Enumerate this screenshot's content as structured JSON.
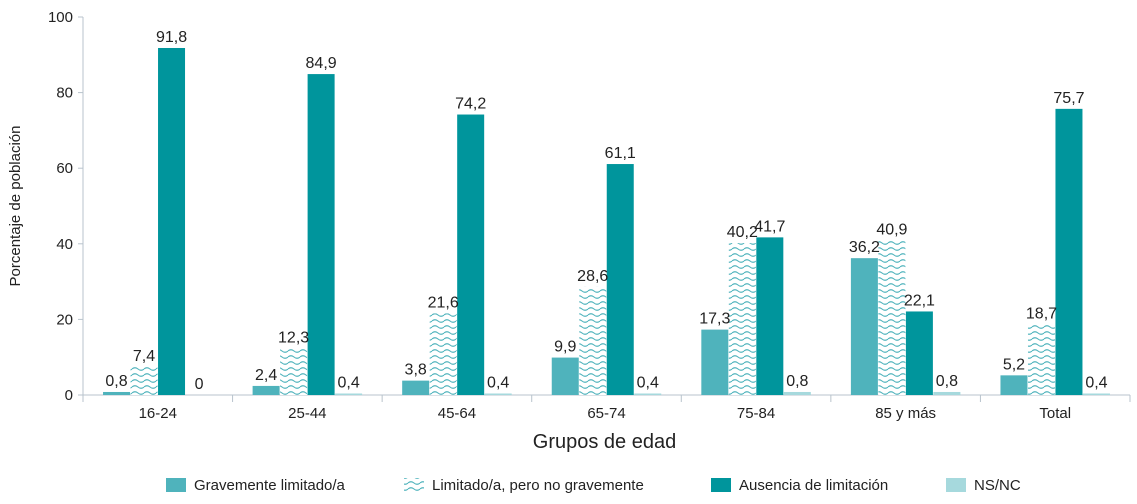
{
  "chart_data": {
    "type": "bar",
    "xlabel": "Grupos de edad",
    "ylabel": "Porcentaje de población",
    "ylim": [
      0,
      100
    ],
    "yticks": [
      "0",
      "20",
      "40",
      "60",
      "80",
      "100"
    ],
    "grid": false,
    "legend_position": "bottom",
    "categories": [
      "16-24",
      "25-44",
      "45-64",
      "65-74",
      "75-84",
      "85 y más",
      "Total"
    ],
    "series": [
      {
        "name": "Gravemente limitado/a",
        "color": "#4fb3bc",
        "pattern": "solid",
        "values": [
          0.8,
          2.4,
          3.8,
          9.9,
          17.3,
          36.2,
          5.2
        ],
        "labels": [
          "0,8",
          "2,4",
          "3,8",
          "9,9",
          "17,3",
          "36,2",
          "5,2"
        ]
      },
      {
        "name": "Limitado/a, pero no gravemente",
        "color": "#4fb3bc",
        "pattern": "waves",
        "values": [
          7.4,
          12.3,
          21.6,
          28.6,
          40.2,
          40.9,
          18.7
        ],
        "labels": [
          "7,4",
          "12,3",
          "21,6",
          "28,6",
          "40,2",
          "40,9",
          "18,7"
        ]
      },
      {
        "name": "Ausencia de limitación",
        "color": "#00959c",
        "pattern": "solid",
        "values": [
          91.8,
          84.9,
          74.2,
          61.1,
          41.7,
          22.1,
          75.7
        ],
        "labels": [
          "91,8",
          "84,9",
          "74,2",
          "61,1",
          "41,7",
          "22,1",
          "75,7"
        ]
      },
      {
        "name": "NS/NC",
        "color": "#a6d9dd",
        "pattern": "solid",
        "values": [
          0,
          0.4,
          0.4,
          0.4,
          0.8,
          0.8,
          0.4
        ],
        "labels": [
          "0",
          "0,4",
          "0,4",
          "0,4",
          "0,8",
          "0,8",
          "0,4"
        ]
      }
    ]
  }
}
